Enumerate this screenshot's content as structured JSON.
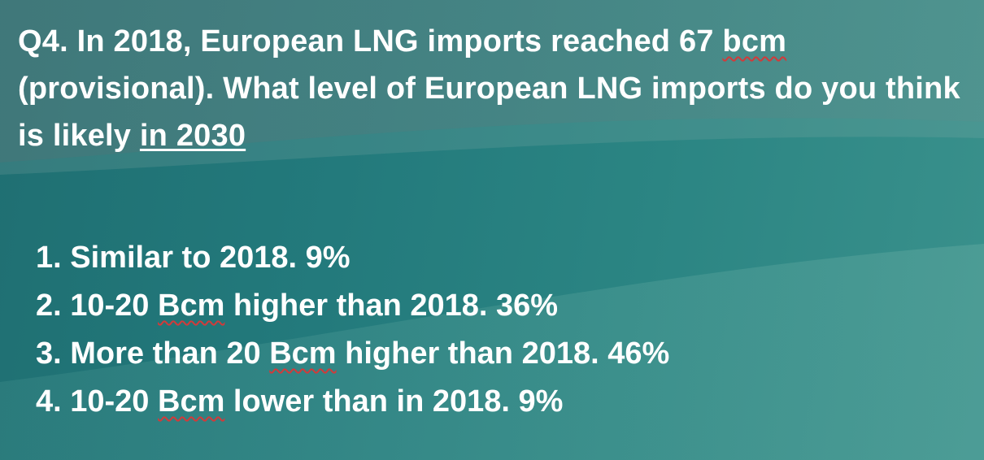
{
  "question": {
    "part1": "Q4. In 2018, European LNG imports reached 67 ",
    "part2": "bcm",
    "part3": " (provisional). What level of European LNG imports do you think is likely ",
    "part4": "in 2030"
  },
  "options": [
    {
      "pre": "1. Similar to 2018. 9%",
      "spell": "",
      "post": ""
    },
    {
      "pre": "2. 10-20 ",
      "spell": "Bcm",
      "post": " higher than 2018. 36%"
    },
    {
      "pre": "3. More than 20 ",
      "spell": "Bcm",
      "post": " higher than 2018. 46%"
    },
    {
      "pre": "4. 10-20 ",
      "spell": "Bcm",
      "post": " lower than in 2018. 9%"
    }
  ]
}
